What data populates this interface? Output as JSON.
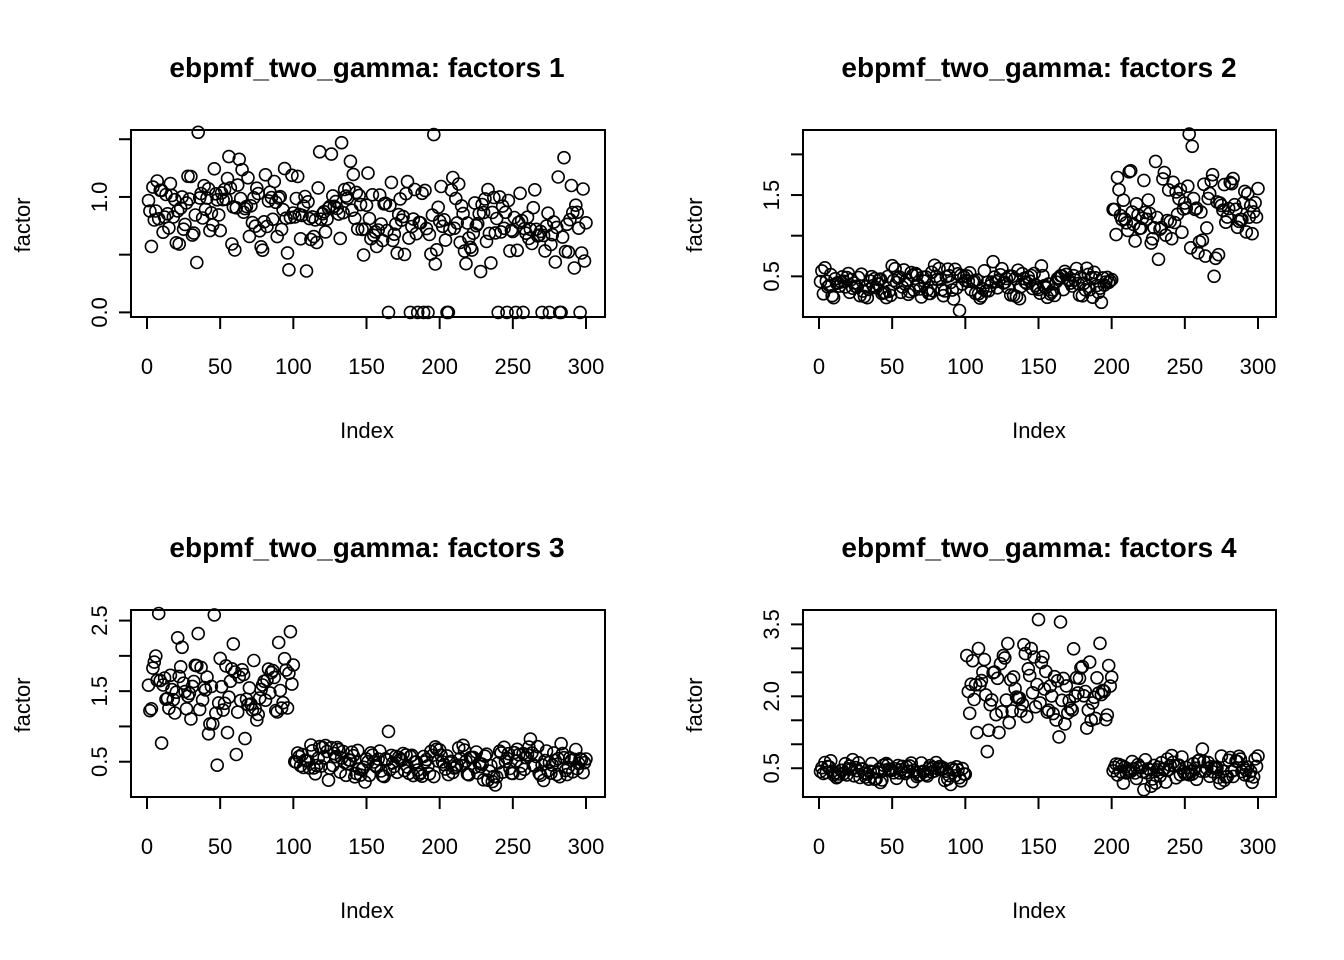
{
  "figure": {
    "background": "#ffffff",
    "point_color": "#000000"
  },
  "chart_data": [
    {
      "type": "scatter",
      "title": "ebpmf_two_gamma: factors 1",
      "xlabel": "Index",
      "ylabel": "factor",
      "xlim": [
        0,
        300
      ],
      "ylim": [
        -0.04,
        1.58
      ],
      "xticks": [
        0,
        50,
        100,
        150,
        200,
        250,
        300
      ],
      "xtick_labels": [
        "0",
        "50",
        "100",
        "150",
        "200",
        "250",
        "300"
      ],
      "yticks": [
        0.0,
        0.5,
        1.0,
        1.5
      ],
      "ytick_labels": [
        "0.0",
        "",
        "1.0",
        ""
      ],
      "segments": [
        {
          "from": 1,
          "to": 160,
          "pattern": "uniform",
          "lo": 0.3,
          "hi": 1.5
        },
        {
          "from": 161,
          "to": 300,
          "pattern": "uniform_with_zeros",
          "lo": 0.25,
          "hi": 1.3,
          "zero_rate": 0.1
        }
      ],
      "highlights": [
        [
          35,
          1.56
        ],
        [
          196,
          1.54
        ],
        [
          133,
          1.47
        ],
        [
          285,
          1.34
        ],
        [
          205,
          0.0
        ],
        [
          165,
          0.0
        ],
        [
          240,
          0.0
        ],
        [
          275,
          0.0
        ],
        [
          296,
          0.0
        ]
      ]
    },
    {
      "type": "scatter",
      "title": "ebpmf_two_gamma: factors 2",
      "xlabel": "Index",
      "ylabel": "factor",
      "xlim": [
        0,
        300
      ],
      "ylim": [
        0.0,
        2.3
      ],
      "xticks": [
        0,
        50,
        100,
        150,
        200,
        250,
        300
      ],
      "xtick_labels": [
        "0",
        "50",
        "100",
        "150",
        "200",
        "250",
        "300"
      ],
      "yticks": [
        0.5,
        1.0,
        1.5,
        2.0
      ],
      "ytick_labels": [
        "0.5",
        "",
        "1.5",
        ""
      ],
      "segments": [
        {
          "from": 1,
          "to": 200,
          "pattern": "uniform",
          "lo": 0.1,
          "hi": 0.72
        },
        {
          "from": 201,
          "to": 300,
          "pattern": "uniform",
          "lo": 0.5,
          "hi": 2.1
        }
      ],
      "highlights": [
        [
          253,
          2.25
        ],
        [
          255,
          2.1
        ],
        [
          96,
          0.08
        ],
        [
          270,
          0.5
        ]
      ]
    },
    {
      "type": "scatter",
      "title": "ebpmf_two_gamma: factors 3",
      "xlabel": "Index",
      "ylabel": "factor",
      "xlim": [
        0,
        300
      ],
      "ylim": [
        0.0,
        2.65
      ],
      "xticks": [
        0,
        50,
        100,
        150,
        200,
        250,
        300
      ],
      "xtick_labels": [
        "0",
        "50",
        "100",
        "150",
        "200",
        "250",
        "300"
      ],
      "yticks": [
        0.5,
        1.0,
        1.5,
        2.0,
        2.5
      ],
      "ytick_labels": [
        "0.5",
        "",
        "1.5",
        "",
        "2.5"
      ],
      "segments": [
        {
          "from": 1,
          "to": 100,
          "pattern": "uniform",
          "lo": 0.45,
          "hi": 2.6
        },
        {
          "from": 101,
          "to": 300,
          "pattern": "uniform",
          "lo": 0.1,
          "hi": 0.85
        }
      ],
      "highlights": [
        [
          8,
          2.6
        ],
        [
          46,
          2.58
        ],
        [
          48,
          0.45
        ],
        [
          165,
          0.93
        ],
        [
          262,
          0.82
        ]
      ]
    },
    {
      "type": "scatter",
      "title": "ebpmf_two_gamma: factors 4",
      "xlabel": "Index",
      "ylabel": "factor",
      "xlim": [
        0,
        300
      ],
      "ylim": [
        -0.1,
        3.8
      ],
      "xticks": [
        0,
        50,
        100,
        150,
        200,
        250,
        300
      ],
      "xtick_labels": [
        "0",
        "50",
        "100",
        "150",
        "200",
        "250",
        "300"
      ],
      "yticks": [
        0.5,
        1.0,
        1.5,
        2.0,
        2.5,
        3.0,
        3.5
      ],
      "ytick_labels": [
        "0.5",
        "",
        "",
        "2.0",
        "",
        "",
        "3.5"
      ],
      "segments": [
        {
          "from": 1,
          "to": 100,
          "pattern": "uniform",
          "lo": 0.1,
          "hi": 0.75
        },
        {
          "from": 101,
          "to": 200,
          "pattern": "uniform",
          "lo": 0.6,
          "hi": 3.6
        },
        {
          "from": 201,
          "to": 300,
          "pattern": "uniform",
          "lo": 0.05,
          "hi": 0.9
        }
      ],
      "highlights": [
        [
          150,
          3.6
        ],
        [
          165,
          3.55
        ],
        [
          222,
          0.05
        ],
        [
          262,
          0.9
        ]
      ]
    }
  ]
}
